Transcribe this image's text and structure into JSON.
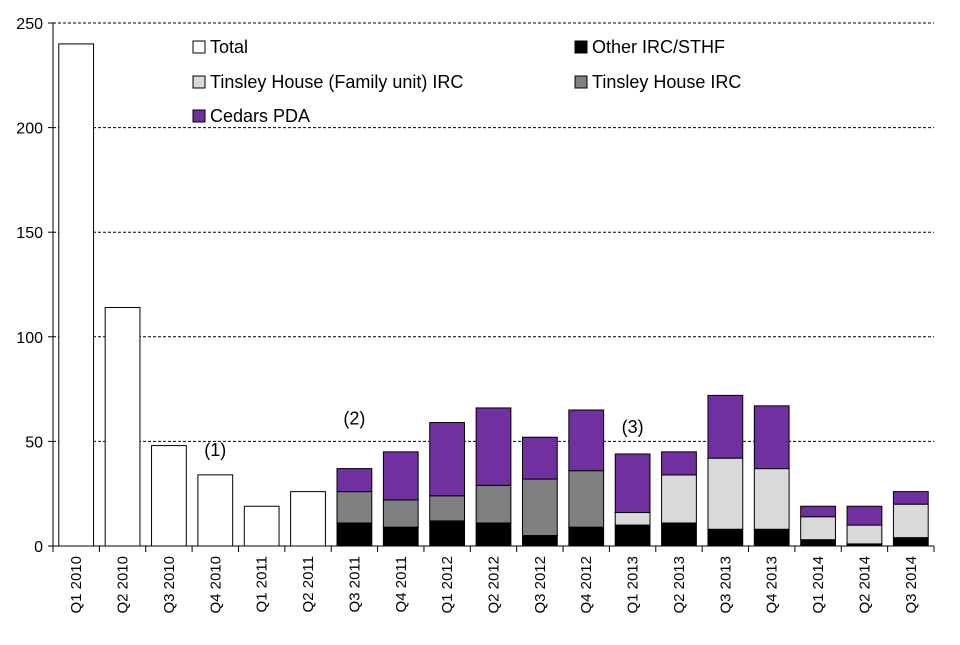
{
  "chart_data": {
    "type": "bar",
    "stacked": true,
    "title": "",
    "xlabel": "",
    "ylabel": "",
    "ylim": [
      0,
      250
    ],
    "yticks": [
      0,
      50,
      100,
      150,
      200,
      250
    ],
    "grid": true,
    "legend_position": "top",
    "categories": [
      "Q1 2010",
      "Q2 2010",
      "Q3 2010",
      "Q4 2010",
      "Q1 2011",
      "Q2 2011",
      "Q3 2011",
      "Q4 2011",
      "Q1 2012",
      "Q2 2012",
      "Q3 2012",
      "Q4 2012",
      "Q1 2013",
      "Q2 2013",
      "Q3 2013",
      "Q4 2013",
      "Q1 2014",
      "Q2 2014",
      "Q3 2014"
    ],
    "series": [
      {
        "name": "Total",
        "color": "#ffffff",
        "values": [
          240,
          114,
          48,
          34,
          19,
          26,
          null,
          null,
          null,
          null,
          null,
          null,
          null,
          null,
          null,
          null,
          null,
          null,
          null
        ]
      },
      {
        "name": "Other IRC/STHF",
        "color": "#000000",
        "values": [
          null,
          null,
          null,
          null,
          null,
          null,
          11,
          9,
          12,
          11,
          5,
          9,
          10,
          11,
          8,
          8,
          3,
          1,
          4
        ]
      },
      {
        "name": "Tinsley House (Family unit) IRC",
        "color": "#d9d9d9",
        "values": [
          null,
          null,
          null,
          null,
          null,
          null,
          0,
          0,
          0,
          0,
          0,
          0,
          6,
          23,
          34,
          29,
          11,
          9,
          16
        ]
      },
      {
        "name": "Tinsley House IRC",
        "color": "#808080",
        "values": [
          null,
          null,
          null,
          null,
          null,
          null,
          15,
          13,
          12,
          18,
          27,
          27,
          0,
          0,
          0,
          0,
          0,
          0,
          0
        ]
      },
      {
        "name": "Cedars PDA",
        "color": "#7030a0",
        "values": [
          null,
          null,
          null,
          null,
          null,
          null,
          11,
          23,
          35,
          37,
          20,
          29,
          28,
          11,
          30,
          30,
          5,
          9,
          6
        ]
      }
    ],
    "legend_order": [
      "Total",
      "Other IRC/STHF",
      "Tinsley House (Family unit) IRC",
      "Tinsley House IRC",
      "Cedars PDA"
    ],
    "annotations": [
      {
        "text": "(1)",
        "category": "Q4 2010",
        "y": 43
      },
      {
        "text": "(2)",
        "category": "Q3 2011",
        "y": 58
      },
      {
        "text": "(3)",
        "category": "Q1 2013",
        "y": 54
      }
    ]
  }
}
